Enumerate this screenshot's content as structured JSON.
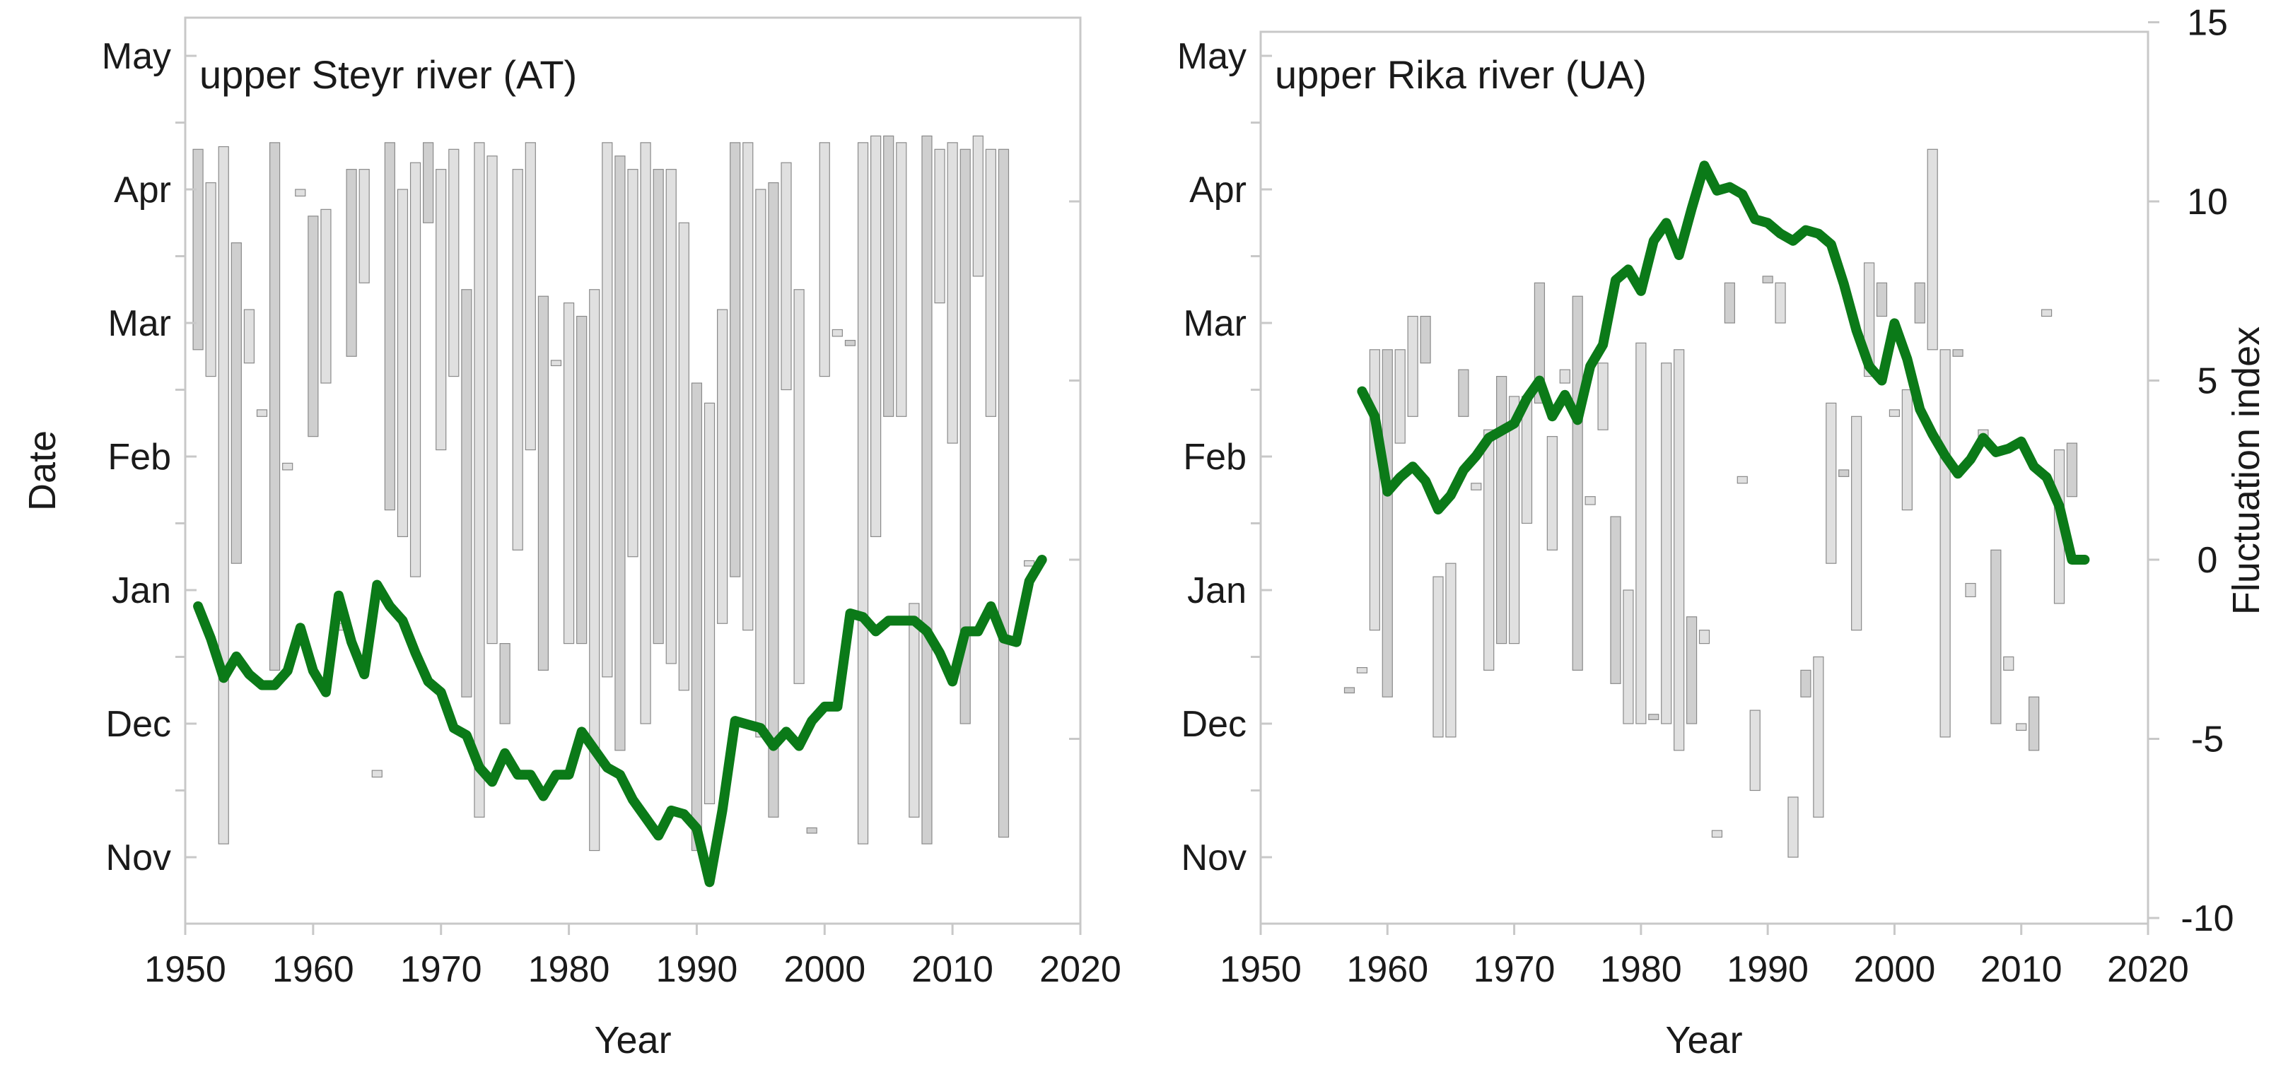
{
  "figure": {
    "y_axis_title": "Date",
    "right_axis_title": "Fluctuation index",
    "date_ticks": [
      "Nov",
      "Dec",
      "Jan",
      "Feb",
      "Mar",
      "Apr",
      "May"
    ]
  },
  "chart_data": [
    {
      "type": "bar",
      "title": "upper Steyr river (AT)",
      "xlabel": "Year",
      "ylabel": "Date",
      "xlim": [
        1950,
        2020
      ],
      "xticks": [
        1950,
        1960,
        1970,
        1980,
        1990,
        2000,
        2010,
        2020
      ],
      "ylim_month_index": [
        -0.4,
        6.4
      ],
      "floating_bars": [
        {
          "year": 1951,
          "start": 3.8,
          "end": 5.3
        },
        {
          "year": 1952,
          "start": 3.6,
          "end": 5.05
        },
        {
          "year": 1953,
          "start": 0.1,
          "end": 5.32
        },
        {
          "year": 1954,
          "start": 2.2,
          "end": 4.6
        },
        {
          "year": 1955,
          "start": 3.7,
          "end": 4.1
        },
        {
          "year": 1956,
          "start": 3.3,
          "end": 3.35
        },
        {
          "year": 1957,
          "start": 1.4,
          "end": 5.35
        },
        {
          "year": 1958,
          "start": 2.9,
          "end": 2.95
        },
        {
          "year": 1959,
          "start": 4.95,
          "end": 5.0
        },
        {
          "year": 1960,
          "start": 3.15,
          "end": 4.8
        },
        {
          "year": 1961,
          "start": 3.55,
          "end": 4.85
        },
        {
          "year": 1962,
          "start": 1.7,
          "end": 1.75
        },
        {
          "year": 1963,
          "start": 3.75,
          "end": 5.15
        },
        {
          "year": 1964,
          "start": 4.3,
          "end": 5.15
        },
        {
          "year": 1965,
          "start": 0.6,
          "end": 0.65
        },
        {
          "year": 1966,
          "start": 2.6,
          "end": 5.35
        },
        {
          "year": 1967,
          "start": 2.4,
          "end": 5.0
        },
        {
          "year": 1968,
          "start": 2.1,
          "end": 5.2
        },
        {
          "year": 1969,
          "start": 4.75,
          "end": 5.35
        },
        {
          "year": 1970,
          "start": 3.05,
          "end": 5.15
        },
        {
          "year": 1971,
          "start": 3.6,
          "end": 5.3
        },
        {
          "year": 1972,
          "start": 1.2,
          "end": 4.25
        },
        {
          "year": 1973,
          "start": 0.3,
          "end": 5.35
        },
        {
          "year": 1974,
          "start": 1.6,
          "end": 5.25
        },
        {
          "year": 1975,
          "start": 1.0,
          "end": 1.6
        },
        {
          "year": 1976,
          "start": 2.3,
          "end": 5.15
        },
        {
          "year": 1977,
          "start": 3.05,
          "end": 5.35
        },
        {
          "year": 1978,
          "start": 1.4,
          "end": 4.2
        },
        {
          "year": 1979,
          "start": 3.68,
          "end": 3.72
        },
        {
          "year": 1980,
          "start": 1.6,
          "end": 4.15
        },
        {
          "year": 1981,
          "start": 1.6,
          "end": 4.05
        },
        {
          "year": 1982,
          "start": 0.05,
          "end": 4.25
        },
        {
          "year": 1983,
          "start": 1.35,
          "end": 5.35
        },
        {
          "year": 1984,
          "start": 0.8,
          "end": 5.25
        },
        {
          "year": 1985,
          "start": 2.25,
          "end": 5.15
        },
        {
          "year": 1986,
          "start": 1.0,
          "end": 5.35
        },
        {
          "year": 1987,
          "start": 1.6,
          "end": 5.15
        },
        {
          "year": 1988,
          "start": 1.45,
          "end": 5.15
        },
        {
          "year": 1989,
          "start": 1.25,
          "end": 4.75
        },
        {
          "year": 1990,
          "start": 0.05,
          "end": 3.55
        },
        {
          "year": 1991,
          "start": 0.4,
          "end": 3.4
        },
        {
          "year": 1992,
          "start": 1.75,
          "end": 4.1
        },
        {
          "year": 1993,
          "start": 2.1,
          "end": 5.35
        },
        {
          "year": 1994,
          "start": 1.7,
          "end": 5.35
        },
        {
          "year": 1995,
          "start": 0.9,
          "end": 5.0
        },
        {
          "year": 1996,
          "start": 0.3,
          "end": 5.05
        },
        {
          "year": 1997,
          "start": 3.5,
          "end": 5.2
        },
        {
          "year": 1998,
          "start": 1.3,
          "end": 4.25
        },
        {
          "year": 1999,
          "start": 0.18,
          "end": 0.22
        },
        {
          "year": 2000,
          "start": 3.6,
          "end": 5.35
        },
        {
          "year": 2001,
          "start": 3.9,
          "end": 3.95
        },
        {
          "year": 2002,
          "start": 3.83,
          "end": 3.87
        },
        {
          "year": 2003,
          "start": 0.1,
          "end": 5.35
        },
        {
          "year": 2004,
          "start": 2.4,
          "end": 5.4
        },
        {
          "year": 2005,
          "start": 3.3,
          "end": 5.4
        },
        {
          "year": 2006,
          "start": 3.3,
          "end": 5.35
        },
        {
          "year": 2007,
          "start": 0.3,
          "end": 1.9
        },
        {
          "year": 2008,
          "start": 0.1,
          "end": 5.4
        },
        {
          "year": 2009,
          "start": 4.15,
          "end": 5.3
        },
        {
          "year": 2010,
          "start": 3.1,
          "end": 5.35
        },
        {
          "year": 2011,
          "start": 1.0,
          "end": 5.3
        },
        {
          "year": 2012,
          "start": 4.35,
          "end": 5.4
        },
        {
          "year": 2013,
          "start": 3.3,
          "end": 5.3
        },
        {
          "year": 2014,
          "start": 0.15,
          "end": 5.3
        },
        {
          "year": 2016,
          "start": 2.18,
          "end": 2.22
        }
      ],
      "fluctuation_index": {
        "x": [
          1951,
          1952,
          1953,
          1954,
          1955,
          1956,
          1957,
          1958,
          1959,
          1960,
          1961,
          1962,
          1963,
          1964,
          1965,
          1966,
          1967,
          1968,
          1969,
          1970,
          1971,
          1972,
          1973,
          1974,
          1975,
          1976,
          1977,
          1978,
          1979,
          1980,
          1981,
          1982,
          1983,
          1984,
          1985,
          1986,
          1987,
          1988,
          1989,
          1990,
          1991,
          1992,
          1993,
          1994,
          1995,
          1996,
          1997,
          1998,
          1999,
          2000,
          2001,
          2002,
          2003,
          2004,
          2005,
          2006,
          2007,
          2008,
          2009,
          2010,
          2011,
          2012,
          2013,
          2014,
          2015,
          2016,
          2017
        ],
        "y": [
          -1.3,
          -2.2,
          -3.3,
          -2.7,
          -3.2,
          -3.5,
          -3.5,
          -3.1,
          -1.9,
          -3.1,
          -3.7,
          -1.0,
          -2.3,
          -3.2,
          -0.7,
          -1.3,
          -1.7,
          -2.6,
          -3.4,
          -3.7,
          -4.7,
          -4.9,
          -5.8,
          -6.2,
          -5.4,
          -6.0,
          -6.0,
          -6.6,
          -6.0,
          -6.0,
          -4.8,
          -5.3,
          -5.8,
          -6.0,
          -6.7,
          -7.2,
          -7.7,
          -7.0,
          -7.1,
          -7.5,
          -9.0,
          -7.0,
          -4.5,
          -4.6,
          -4.7,
          -5.2,
          -4.8,
          -5.2,
          -4.5,
          -4.1,
          -4.1,
          -1.5,
          -1.6,
          -2.0,
          -1.7,
          -1.7,
          -1.7,
          -2.0,
          -2.6,
          -3.4,
          -2.0,
          -2.0,
          -1.3,
          -2.2,
          -2.3,
          -0.6,
          0.0
        ]
      }
    },
    {
      "type": "bar",
      "title": "upper Rika river (UA)",
      "xlabel": "Year",
      "ylabel": "Fluctuation index",
      "xlim": [
        1950,
        2020
      ],
      "xticks": [
        1950,
        1960,
        1970,
        1980,
        1990,
        2000,
        2010,
        2020
      ],
      "ylim": [
        -10,
        15
      ],
      "yticks": [
        -10,
        -5,
        0,
        5,
        10,
        15
      ],
      "floating_bars": [
        {
          "year": 1957,
          "start": 1.23,
          "end": 1.27
        },
        {
          "year": 1958,
          "start": 1.38,
          "end": 1.42
        },
        {
          "year": 1959,
          "start": 1.7,
          "end": 3.8
        },
        {
          "year": 1960,
          "start": 1.2,
          "end": 3.8
        },
        {
          "year": 1961,
          "start": 3.1,
          "end": 3.8
        },
        {
          "year": 1962,
          "start": 3.3,
          "end": 4.05
        },
        {
          "year": 1963,
          "start": 3.7,
          "end": 4.05
        },
        {
          "year": 1964,
          "start": 0.9,
          "end": 2.1
        },
        {
          "year": 1965,
          "start": 0.9,
          "end": 2.2
        },
        {
          "year": 1966,
          "start": 3.3,
          "end": 3.65
        },
        {
          "year": 1967,
          "start": 2.75,
          "end": 2.8
        },
        {
          "year": 1968,
          "start": 1.4,
          "end": 3.2
        },
        {
          "year": 1969,
          "start": 1.6,
          "end": 3.6
        },
        {
          "year": 1970,
          "start": 1.6,
          "end": 3.45
        },
        {
          "year": 1971,
          "start": 2.5,
          "end": 3.45
        },
        {
          "year": 1972,
          "start": 3.4,
          "end": 4.3
        },
        {
          "year": 1973,
          "start": 2.3,
          "end": 3.15
        },
        {
          "year": 1974,
          "start": 3.55,
          "end": 3.65
        },
        {
          "year": 1975,
          "start": 1.4,
          "end": 4.2
        },
        {
          "year": 1976,
          "start": 2.64,
          "end": 2.7
        },
        {
          "year": 1977,
          "start": 3.2,
          "end": 3.7
        },
        {
          "year": 1978,
          "start": 1.3,
          "end": 2.55
        },
        {
          "year": 1979,
          "start": 1.0,
          "end": 2.0
        },
        {
          "year": 1980,
          "start": 1.0,
          "end": 3.85
        },
        {
          "year": 1981,
          "start": 1.03,
          "end": 1.07
        },
        {
          "year": 1982,
          "start": 1.0,
          "end": 3.7
        },
        {
          "year": 1983,
          "start": 0.8,
          "end": 3.8
        },
        {
          "year": 1984,
          "start": 1.0,
          "end": 1.8
        },
        {
          "year": 1985,
          "start": 1.6,
          "end": 1.7
        },
        {
          "year": 1986,
          "start": 0.15,
          "end": 0.2
        },
        {
          "year": 1987,
          "start": 4.0,
          "end": 4.3
        },
        {
          "year": 1988,
          "start": 2.8,
          "end": 2.85
        },
        {
          "year": 1989,
          "start": 0.5,
          "end": 1.1
        },
        {
          "year": 1990,
          "start": 4.3,
          "end": 4.35
        },
        {
          "year": 1991,
          "start": 4.0,
          "end": 4.3
        },
        {
          "year": 1992,
          "start": 0.0,
          "end": 0.45
        },
        {
          "year": 1993,
          "start": 1.2,
          "end": 1.4
        },
        {
          "year": 1994,
          "start": 0.3,
          "end": 1.5
        },
        {
          "year": 1995,
          "start": 2.2,
          "end": 3.4
        },
        {
          "year": 1996,
          "start": 2.85,
          "end": 2.9
        },
        {
          "year": 1997,
          "start": 1.7,
          "end": 3.3
        },
        {
          "year": 1998,
          "start": 3.6,
          "end": 4.45
        },
        {
          "year": 1999,
          "start": 4.05,
          "end": 4.3
        },
        {
          "year": 2000,
          "start": 3.3,
          "end": 3.35
        },
        {
          "year": 2001,
          "start": 2.6,
          "end": 3.5
        },
        {
          "year": 2002,
          "start": 4.0,
          "end": 4.3
        },
        {
          "year": 2003,
          "start": 3.8,
          "end": 5.3
        },
        {
          "year": 2004,
          "start": 0.9,
          "end": 3.8
        },
        {
          "year": 2005,
          "start": 3.75,
          "end": 3.8
        },
        {
          "year": 2006,
          "start": 1.95,
          "end": 2.05
        },
        {
          "year": 2007,
          "start": 3.15,
          "end": 3.2
        },
        {
          "year": 2008,
          "start": 1.0,
          "end": 2.3
        },
        {
          "year": 2009,
          "start": 1.4,
          "end": 1.5
        },
        {
          "year": 2010,
          "start": 0.95,
          "end": 1.0
        },
        {
          "year": 2011,
          "start": 0.8,
          "end": 1.2
        },
        {
          "year": 2012,
          "start": 4.05,
          "end": 4.1
        },
        {
          "year": 2013,
          "start": 1.9,
          "end": 3.05
        },
        {
          "year": 2014,
          "start": 2.7,
          "end": 3.1
        }
      ],
      "fluctuation_index": {
        "x": [
          1958,
          1959,
          1960,
          1961,
          1962,
          1963,
          1964,
          1965,
          1966,
          1967,
          1968,
          1969,
          1970,
          1971,
          1972,
          1973,
          1974,
          1975,
          1976,
          1977,
          1978,
          1979,
          1980,
          1981,
          1982,
          1983,
          1984,
          1985,
          1986,
          1987,
          1988,
          1989,
          1990,
          1991,
          1992,
          1993,
          1994,
          1995,
          1996,
          1997,
          1998,
          1999,
          2000,
          2001,
          2002,
          2003,
          2004,
          2005,
          2006,
          2007,
          2008,
          2009,
          2010,
          2011,
          2012,
          2013,
          2014,
          2015
        ],
        "y": [
          4.7,
          4.0,
          1.9,
          2.3,
          2.6,
          2.2,
          1.4,
          1.8,
          2.5,
          2.9,
          3.4,
          3.6,
          3.8,
          4.5,
          5.0,
          4.0,
          4.6,
          3.9,
          5.4,
          6.0,
          7.8,
          8.1,
          7.5,
          8.9,
          9.4,
          8.5,
          9.8,
          11.0,
          10.3,
          10.4,
          10.2,
          9.5,
          9.4,
          9.1,
          8.9,
          9.2,
          9.1,
          8.8,
          7.7,
          6.4,
          5.4,
          5.0,
          6.6,
          5.6,
          4.2,
          3.5,
          2.9,
          2.4,
          2.8,
          3.4,
          3.0,
          3.1,
          3.3,
          2.6,
          2.3,
          1.5,
          0.0,
          0.0
        ]
      }
    }
  ]
}
